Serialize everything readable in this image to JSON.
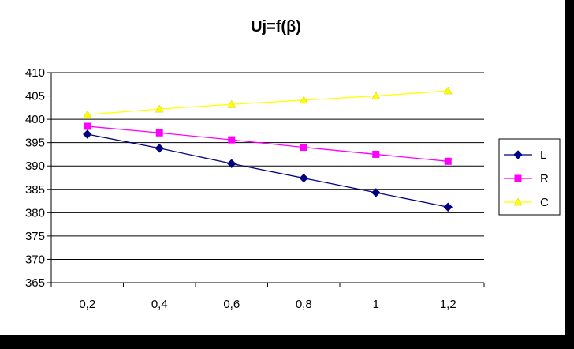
{
  "chart_data": {
    "type": "line",
    "title": "Uj=f(β)",
    "xlabel": "",
    "ylabel": "",
    "categories": [
      "0,2",
      "0,4",
      "0,6",
      "0,8",
      "1",
      "1,2"
    ],
    "ylim": [
      365,
      410
    ],
    "yticks": [
      "365",
      "370",
      "375",
      "380",
      "385",
      "390",
      "395",
      "400",
      "405",
      "410"
    ],
    "grid": "horizontal",
    "legend_position": "right",
    "series": [
      {
        "name": "L",
        "color": "#000080",
        "marker": "diamond",
        "values": [
          396.8,
          393.8,
          390.5,
          387.4,
          384.3,
          381.2
        ]
      },
      {
        "name": "R",
        "color": "#FF00FF",
        "marker": "square",
        "values": [
          398.5,
          397.1,
          395.6,
          394.0,
          392.5,
          391.0
        ]
      },
      {
        "name": "C",
        "color": "#FFFF00",
        "marker": "triangle",
        "values": [
          401.0,
          402.2,
          403.2,
          404.1,
          405.0,
          406.1
        ]
      }
    ]
  }
}
